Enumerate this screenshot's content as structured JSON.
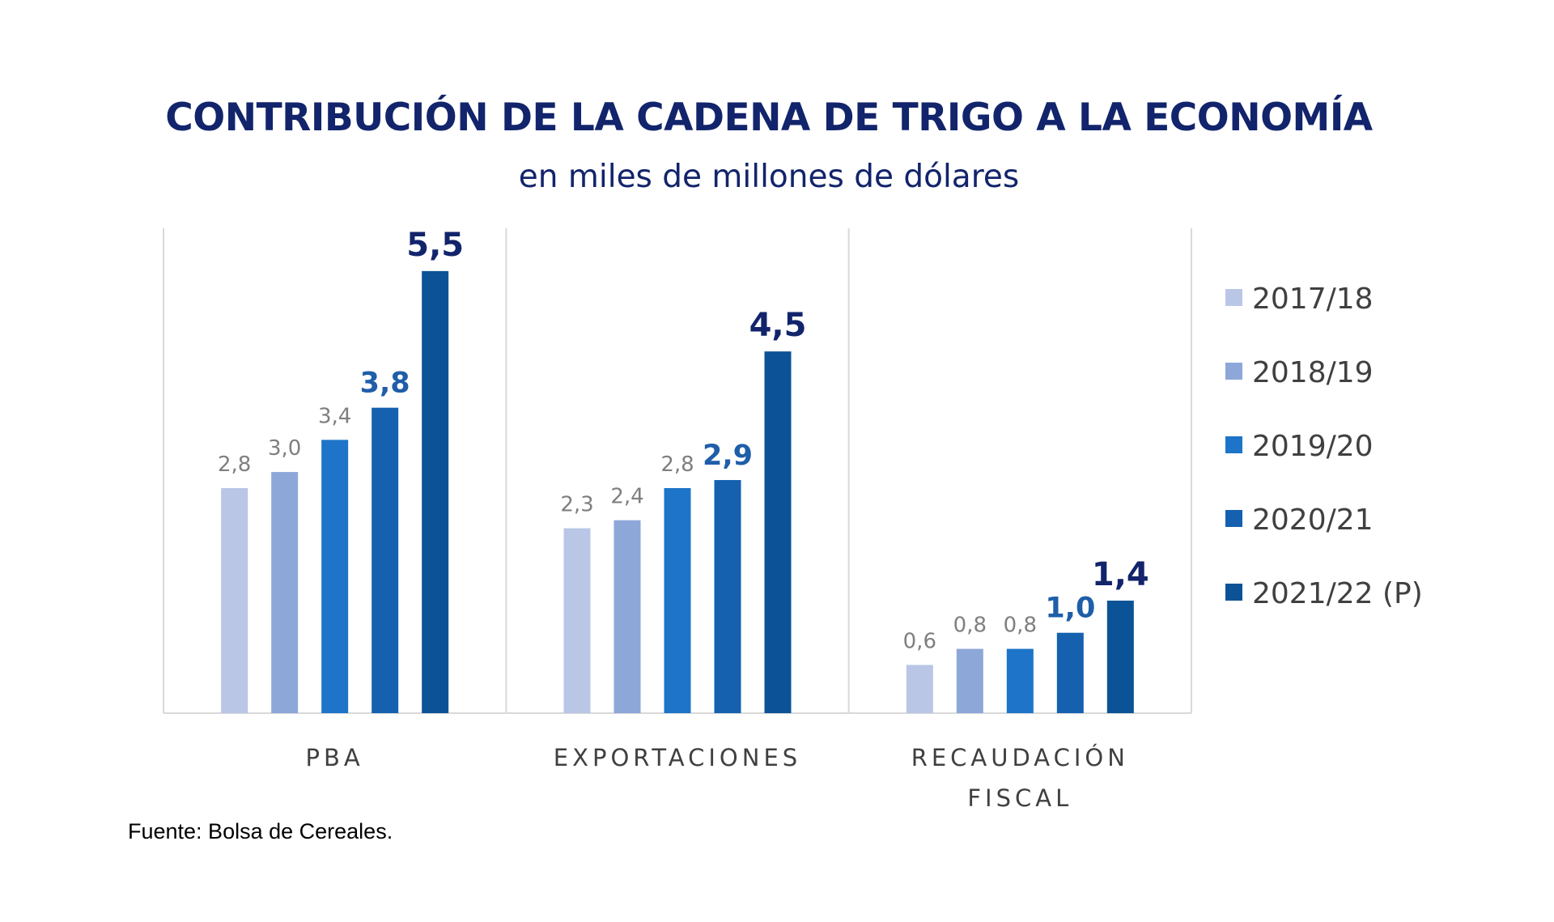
{
  "chart_data": {
    "type": "bar",
    "title": "CONTRIBUCIÓN DE LA CADENA DE TRIGO A LA ECONOMÍA",
    "subtitle": "en miles de millones de dólares",
    "categories": [
      [
        "PBA"
      ],
      [
        "EXPORTACIONES"
      ],
      [
        "RECAUDACIÓN",
        "FISCAL"
      ]
    ],
    "series": [
      {
        "name": "2017/18",
        "color": "#b9c6e6",
        "labels": [
          "2,8",
          "2,3",
          "0,6"
        ],
        "values": [
          2.8,
          2.3,
          0.6
        ],
        "label_color": "#7f7f7f",
        "label_bold": false
      },
      {
        "name": "2018/19",
        "color": "#8ea7d9",
        "labels": [
          "3,0",
          "2,4",
          "0,8"
        ],
        "values": [
          3.0,
          2.4,
          0.8
        ],
        "label_color": "#7f7f7f",
        "label_bold": false
      },
      {
        "name": "2019/20",
        "color": "#1d74c8",
        "labels": [
          "3,4",
          "2,8",
          "0,8"
        ],
        "values": [
          3.4,
          2.8,
          0.8
        ],
        "label_color": "#7f7f7f",
        "label_bold": false
      },
      {
        "name": "2020/21",
        "color": "#1561b0",
        "labels": [
          "3,8",
          "2,9",
          "1,0"
        ],
        "values": [
          3.8,
          2.9,
          1.0
        ],
        "label_color": "#1f5ea8",
        "label_bold": true
      },
      {
        "name": "2021/22 (P)",
        "color": "#0b5396",
        "labels": [
          "5,5",
          "4,5",
          "1,4"
        ],
        "values": [
          5.5,
          4.5,
          1.4
        ],
        "label_color": "#12246b",
        "label_bold": true
      }
    ],
    "ylim": [
      0,
      6
    ],
    "grid": false,
    "legend_position": "right"
  },
  "source": "Fuente: Bolsa de Cereales."
}
